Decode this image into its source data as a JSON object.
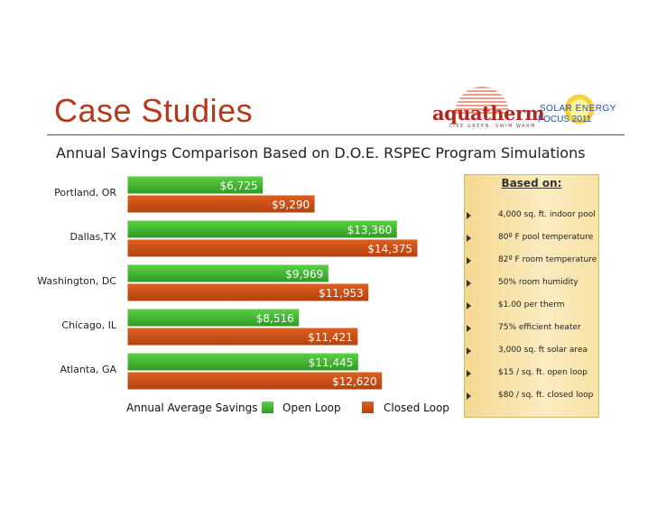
{
  "slide": {
    "title": "Case Studies",
    "subtitle": "Annual Savings Comparison Based on D.O.E. RSPEC Program Simulations"
  },
  "logos": {
    "aquatherm": {
      "name": "aquatherm",
      "tagline": "LIVE GREEN. SWIM WARM."
    },
    "solar": {
      "line1": "SOLAR ENERGY",
      "line2": "FOCUS 2011"
    }
  },
  "colors": {
    "open_loop": "#3cae2d",
    "closed_loop": "#c94a14",
    "title": "#b33a1c"
  },
  "chart_data": {
    "type": "bar",
    "orientation": "horizontal",
    "categories": [
      "Portland, OR",
      "Dallas,TX",
      "Washington, DC",
      "Chicago, IL",
      "Atlanta, GA"
    ],
    "series": [
      {
        "name": "Open Loop",
        "values": [
          6725,
          13360,
          9969,
          8516,
          11445
        ],
        "labels": [
          "$6,725",
          "$13,360",
          "$9,969",
          "$8,516",
          "$11,445"
        ]
      },
      {
        "name": "Closed Loop",
        "values": [
          9290,
          14375,
          11953,
          11421,
          12620
        ],
        "labels": [
          "$9,290",
          "$14,375",
          "$11,953",
          "$11,421",
          "$12,620"
        ]
      }
    ],
    "xlabel": "Annual Average Savings",
    "xlim": [
      0,
      16000
    ],
    "grid": false,
    "legend_position": "bottom"
  },
  "panel": {
    "title": "Based on:",
    "items": [
      "4,000 sq. ft. indoor pool",
      "80º F pool temperature",
      "82º F room temperature",
      "50% room humidity",
      "$1.00 per therm",
      "75% efficient heater",
      "3,000 sq. ft solar area",
      "$15 / sq. ft. open loop",
      "$80 / sq. ft. closed loop"
    ]
  }
}
